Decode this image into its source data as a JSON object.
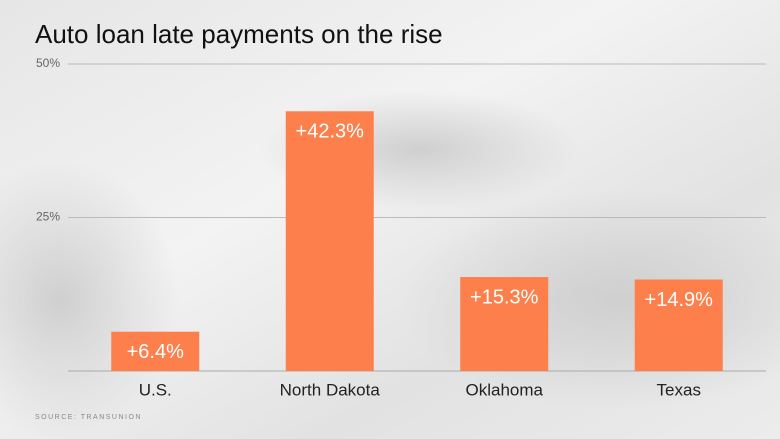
{
  "chart_data": {
    "type": "bar",
    "title": "Auto loan late payments on the rise",
    "categories": [
      "U.S.",
      "North Dakota",
      "Oklahoma",
      "Texas"
    ],
    "values": [
      6.4,
      42.3,
      15.3,
      14.9
    ],
    "value_labels": [
      "+6.4%",
      "+42.3%",
      "+15.3%",
      "+14.9%"
    ],
    "color": "#fd7f4b",
    "ylim": [
      0,
      50
    ],
    "yticks": [
      {
        "value": 25,
        "label": "25%"
      },
      {
        "value": 50,
        "label": "50%"
      }
    ],
    "grid": true,
    "source": "SOURCE: TRANSUNION"
  }
}
